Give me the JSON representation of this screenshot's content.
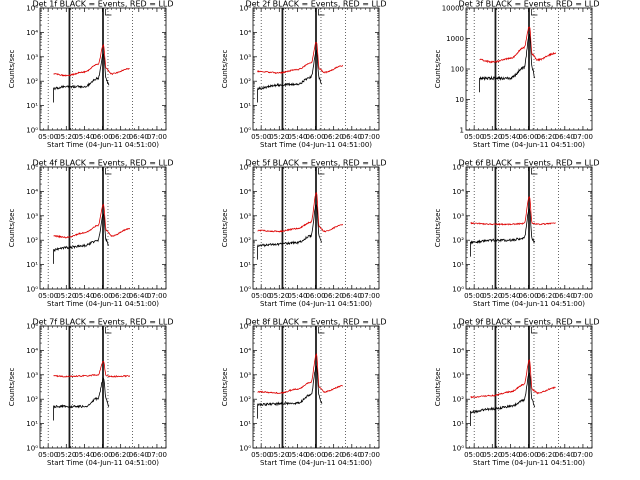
{
  "chart_data": {
    "type": "line",
    "grid": "9 panels, 3x3",
    "x_tick_labels": [
      "05:00",
      "05:20",
      "05:40",
      "06:00",
      "06:20",
      "06:40",
      "07:00"
    ],
    "x_range": [
      "04:51",
      "07:10"
    ],
    "xlabel": "Start Time (04-Jun-11 04:51:00)",
    "ylabel": "Counts/sec",
    "y_scale": "log",
    "colors": {
      "events": "#000000",
      "lld": "#dd0000"
    },
    "vertical_lines": {
      "solid": [
        "05:23",
        "05:24",
        "06:00",
        "06:01"
      ],
      "dotted": [
        "05:00",
        "05:27",
        "06:06",
        "06:33"
      ]
    },
    "panels": [
      {
        "title": "Det 1f BLACK = Events, RED = LLD",
        "ylim": [
          1,
          100000
        ],
        "y_tick_labels": [
          "10⁰",
          "10¹",
          "10²",
          "10³",
          "10⁴",
          "10⁵"
        ],
        "series": [
          {
            "x": [
              "05:06",
              "05:20",
              "05:40",
              "05:55",
              "06:01",
              "06:04",
              "06:10",
              "06:30"
            ],
            "values": [
              200,
              170,
              240,
              500,
              3000,
              320,
              200,
              330
            ]
          },
          {
            "x": [
              "05:06",
              "05:20",
              "05:40",
              "05:55",
              "06:01",
              "06:04",
              "06:07"
            ],
            "values": [
              50,
              60,
              60,
              130,
              1300,
              120,
              70
            ]
          }
        ]
      },
      {
        "title": "Det 2f BLACK = Events, RED = LLD",
        "ylim": [
          1,
          100000
        ],
        "y_tick_labels": [
          "10⁰",
          "10¹",
          "10²",
          "10³",
          "10⁴",
          "10⁵"
        ],
        "series": [
          {
            "x": [
              "04:56",
              "05:20",
              "05:40",
              "05:55",
              "06:01",
              "06:04",
              "06:10",
              "06:30"
            ],
            "values": [
              250,
              220,
              300,
              550,
              4000,
              330,
              230,
              430
            ]
          },
          {
            "x": [
              "04:56",
              "05:20",
              "05:40",
              "05:55",
              "06:01",
              "06:04",
              "06:07"
            ],
            "values": [
              50,
              70,
              75,
              150,
              1700,
              130,
              80
            ]
          }
        ]
      },
      {
        "title": "Det 3f BLACK = Events, RED = LLD",
        "ylim": [
          1,
          10000
        ],
        "y_tick_labels": [
          "1",
          "10",
          "100",
          "1000",
          "10000"
        ],
        "series": [
          {
            "x": [
              "05:06",
              "05:20",
              "05:40",
              "05:55",
              "06:01",
              "06:04",
              "06:10",
              "06:30"
            ],
            "values": [
              200,
              170,
              220,
              500,
              2500,
              300,
              200,
              330
            ]
          },
          {
            "x": [
              "05:06",
              "05:20",
              "05:40",
              "05:55",
              "06:01",
              "06:04",
              "06:07"
            ],
            "values": [
              50,
              50,
              50,
              110,
              1300,
              110,
              50
            ]
          }
        ]
      },
      {
        "title": "Det 4f BLACK = Events, RED = LLD",
        "ylim": [
          1,
          100000
        ],
        "y_tick_labels": [
          "10⁰",
          "10¹",
          "10²",
          "10³",
          "10⁴",
          "10⁵"
        ],
        "series": [
          {
            "x": [
              "05:06",
              "05:20",
              "05:40",
              "05:55",
              "06:01",
              "06:04",
              "06:10",
              "06:30"
            ],
            "values": [
              150,
              130,
              200,
              400,
              3000,
              250,
              150,
              300
            ]
          },
          {
            "x": [
              "05:06",
              "05:20",
              "05:40",
              "05:55",
              "06:01",
              "06:04",
              "06:07"
            ],
            "values": [
              40,
              50,
              60,
              100,
              1100,
              100,
              60
            ]
          }
        ]
      },
      {
        "title": "Det 5f BLACK = Events, RED = LLD",
        "ylim": [
          1,
          100000
        ],
        "y_tick_labels": [
          "10⁰",
          "10¹",
          "10²",
          "10³",
          "10⁴",
          "10⁵"
        ],
        "series": [
          {
            "x": [
              "04:56",
              "05:20",
              "05:40",
              "05:55",
              "06:01",
              "06:04",
              "06:10",
              "06:30"
            ],
            "values": [
              250,
              230,
              300,
              550,
              9000,
              350,
              230,
              430
            ]
          },
          {
            "x": [
              "04:56",
              "05:20",
              "05:40",
              "05:55",
              "06:01",
              "06:04",
              "06:07"
            ],
            "values": [
              60,
              70,
              80,
              150,
              3000,
              140,
              80
            ]
          }
        ]
      },
      {
        "title": "Det 6f BLACK = Events, RED = LLD",
        "ylim": [
          1,
          100000
        ],
        "y_tick_labels": [
          "10⁰",
          "10¹",
          "10²",
          "10³",
          "10⁴",
          "10⁵"
        ],
        "series": [
          {
            "x": [
              "04:56",
              "05:20",
              "05:40",
              "05:55",
              "06:01",
              "06:04",
              "06:10",
              "06:30"
            ],
            "values": [
              500,
              450,
              450,
              480,
              6000,
              500,
              450,
              500
            ]
          },
          {
            "x": [
              "04:56",
              "05:20",
              "05:40",
              "05:55",
              "06:01",
              "06:04",
              "06:07"
            ],
            "values": [
              80,
              100,
              100,
              120,
              2000,
              110,
              80
            ]
          }
        ]
      },
      {
        "title": "Det 7f BLACK = Events, RED = LLD",
        "ylim": [
          1,
          100000
        ],
        "y_tick_labels": [
          "10⁰",
          "10¹",
          "10²",
          "10³",
          "10⁴",
          "10⁵"
        ],
        "series": [
          {
            "x": [
              "05:06",
              "05:20",
              "05:40",
              "05:55",
              "06:01",
              "06:04",
              "06:10",
              "06:30"
            ],
            "values": [
              900,
              850,
              900,
              1000,
              3500,
              900,
              850,
              900
            ]
          },
          {
            "x": [
              "05:06",
              "05:20",
              "05:40",
              "05:55",
              "06:01",
              "06:04",
              "06:07"
            ],
            "values": [
              50,
              50,
              50,
              110,
              700,
              100,
              50
            ]
          }
        ]
      },
      {
        "title": "Det 8f BLACK = Events, RED = LLD",
        "ylim": [
          1,
          100000
        ],
        "y_tick_labels": [
          "10⁰",
          "10¹",
          "10²",
          "10³",
          "10⁴",
          "10⁵"
        ],
        "series": [
          {
            "x": [
              "04:56",
              "05:20",
              "05:40",
              "05:55",
              "06:01",
              "06:04",
              "06:10",
              "06:30"
            ],
            "values": [
              200,
              180,
              260,
              500,
              7000,
              300,
              200,
              350
            ]
          },
          {
            "x": [
              "04:56",
              "05:20",
              "05:40",
              "05:55",
              "06:01",
              "06:04",
              "06:07"
            ],
            "values": [
              60,
              65,
              70,
              150,
              2400,
              130,
              70
            ]
          }
        ]
      },
      {
        "title": "Det 9f BLACK = Events, RED = LLD",
        "ylim": [
          1,
          100000
        ],
        "y_tick_labels": [
          "10⁰",
          "10¹",
          "10²",
          "10³",
          "10⁴",
          "10⁵"
        ],
        "series": [
          {
            "x": [
              "04:56",
              "05:20",
              "05:40",
              "05:55",
              "06:01",
              "06:04",
              "06:10",
              "06:30"
            ],
            "values": [
              120,
              140,
              200,
              400,
              4000,
              250,
              180,
              300
            ]
          },
          {
            "x": [
              "04:56",
              "05:20",
              "05:40",
              "05:55",
              "06:01",
              "06:04",
              "06:07"
            ],
            "values": [
              30,
              40,
              50,
              90,
              1200,
              90,
              50
            ]
          }
        ]
      }
    ]
  }
}
